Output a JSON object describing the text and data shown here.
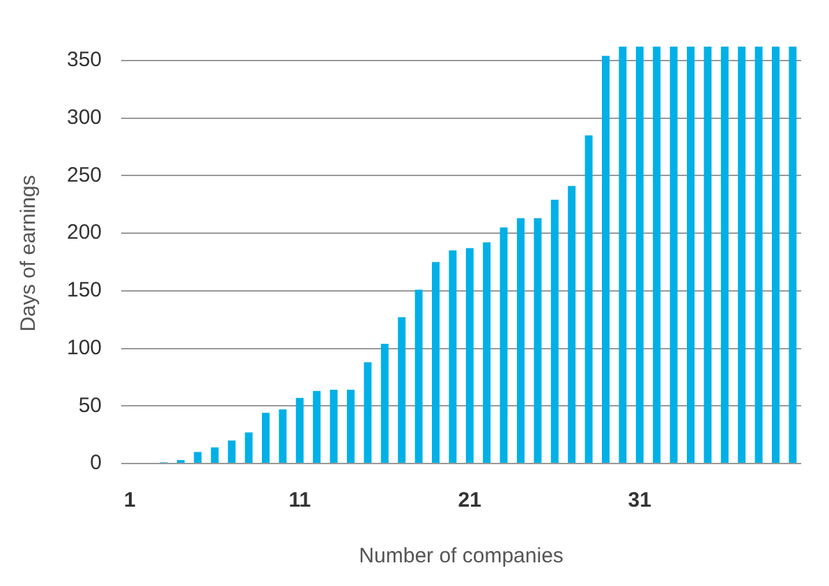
{
  "chart_data": {
    "type": "bar",
    "xlabel": "Number of companies",
    "ylabel": "Days of earnings",
    "categories": [
      "1",
      null,
      null,
      null,
      null,
      null,
      null,
      null,
      null,
      null,
      "11",
      null,
      null,
      null,
      null,
      null,
      null,
      null,
      null,
      null,
      "21",
      null,
      null,
      null,
      null,
      null,
      null,
      null,
      null,
      null,
      "31",
      null,
      null,
      null,
      null,
      null,
      null,
      null,
      null,
      null
    ],
    "values": [
      0,
      0,
      1,
      3,
      10,
      14,
      20,
      27,
      44,
      47,
      57,
      63,
      64,
      64,
      88,
      104,
      127,
      151,
      175,
      185,
      187,
      192,
      205,
      213,
      213,
      229,
      241,
      285,
      354,
      362,
      362,
      362,
      362,
      362,
      362,
      362,
      362,
      362,
      362,
      362
    ],
    "color": "#00b0e6",
    "ylim": [
      0,
      365
    ],
    "yticks": [
      0,
      50,
      100,
      150,
      200,
      250,
      300,
      350
    ],
    "grid": "y"
  }
}
